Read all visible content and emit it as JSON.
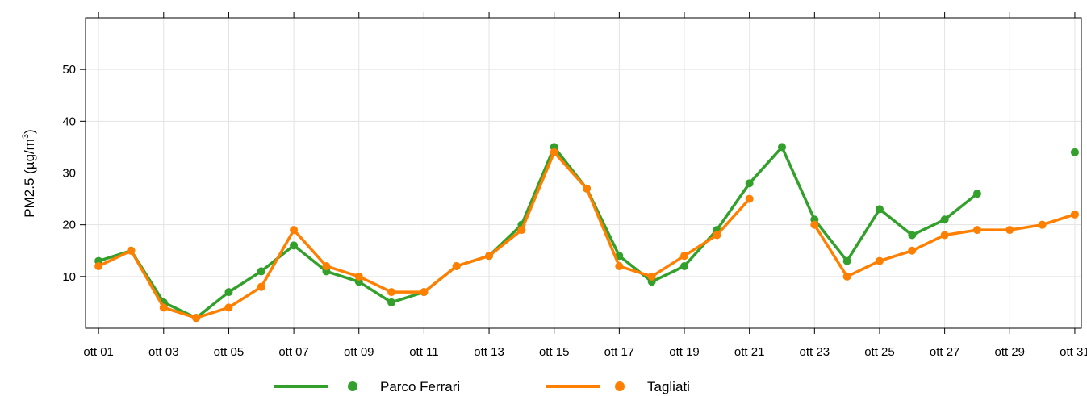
{
  "chart_data": {
    "type": "line",
    "ylabel_main": "PM2.5 (µg/m",
    "ylabel_sup": "3",
    "ylabel_close": ")",
    "xlabel": "",
    "ylim": [
      0,
      60
    ],
    "xlim": [
      0.6,
      31.2
    ],
    "y_ticks": [
      10,
      20,
      30,
      40,
      50
    ],
    "y_tick_labels": [
      "10",
      "20",
      "30",
      "40",
      "50"
    ],
    "x_ticks": [
      1,
      3,
      5,
      7,
      9,
      11,
      13,
      15,
      17,
      19,
      21,
      23,
      25,
      27,
      29,
      31
    ],
    "x_tick_labels": [
      "ott 01",
      "ott 03",
      "ott 05",
      "ott 07",
      "ott 09",
      "ott 11",
      "ott 13",
      "ott 15",
      "ott 17",
      "ott 19",
      "ott 21",
      "ott 23",
      "ott 25",
      "ott 27",
      "ott 29",
      "ott 31"
    ],
    "grid": true,
    "legend_position": "bottom",
    "series": [
      {
        "name": "Parco Ferrari",
        "color": "#33a02c",
        "values": [
          13,
          15,
          5,
          2,
          7,
          11,
          16,
          11,
          9,
          5,
          7,
          12,
          14,
          20,
          35,
          27,
          14,
          9,
          12,
          19,
          28,
          35,
          21,
          13,
          23,
          18,
          21,
          26,
          null,
          null,
          34
        ]
      },
      {
        "name": "Tagliati",
        "color": "#ff7f00",
        "values": [
          12,
          15,
          4,
          2,
          4,
          8,
          19,
          12,
          10,
          7,
          7,
          12,
          14,
          19,
          34,
          27,
          12,
          10,
          14,
          18,
          25,
          null,
          20,
          10,
          13,
          15,
          18,
          19,
          19,
          20,
          22
        ]
      }
    ]
  }
}
